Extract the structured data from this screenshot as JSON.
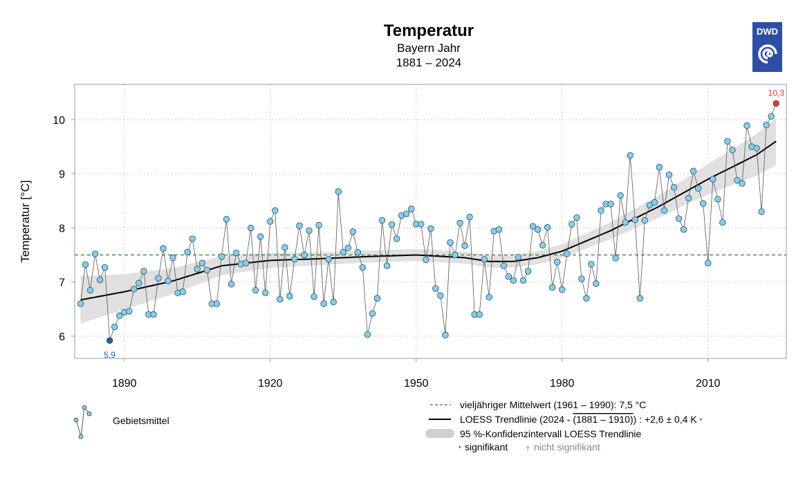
{
  "logo": {
    "text": "DWD",
    "color": "#2d4fa3"
  },
  "chart_data": {
    "type": "line",
    "title": "Temperatur",
    "subtitle": "Bayern Jahr",
    "period": "1881 – 2024",
    "xlabel": "",
    "ylabel": "Temperatur [°C]",
    "xlim": [
      1879.8,
      2026.1
    ],
    "ylim": [
      5.59,
      10.65
    ],
    "xticks": [
      1890,
      1920,
      1950,
      1980,
      2010
    ],
    "yticks": [
      6,
      7,
      8,
      9,
      10
    ],
    "grid": true,
    "x_start": 1881,
    "series": [
      {
        "name": "Gebietsmittel",
        "values": [
          6.6,
          7.32,
          6.85,
          7.52,
          7.04,
          7.27,
          5.92,
          6.17,
          6.38,
          6.44,
          6.46,
          6.87,
          6.98,
          7.2,
          6.4,
          6.4,
          7.07,
          7.62,
          7.02,
          7.45,
          6.8,
          6.82,
          7.55,
          7.8,
          7.24,
          7.35,
          7.22,
          6.6,
          6.6,
          7.47,
          8.16,
          6.96,
          7.54,
          7.33,
          7.35,
          8.0,
          6.85,
          7.84,
          6.8,
          8.12,
          8.32,
          6.68,
          7.64,
          6.74,
          7.42,
          8.04,
          7.5,
          7.95,
          6.73,
          8.05,
          6.6,
          7.42,
          6.63,
          8.67,
          7.55,
          7.63,
          7.93,
          7.55,
          7.27,
          6.03,
          6.42,
          6.7,
          8.14,
          7.3,
          8.06,
          7.8,
          8.23,
          8.26,
          8.35,
          8.07,
          8.07,
          7.41,
          7.99,
          6.88,
          6.75,
          6.02,
          7.73,
          7.5,
          8.09,
          7.67,
          8.2,
          6.4,
          6.4,
          7.42,
          6.72,
          7.94,
          7.97,
          7.3,
          7.1,
          7.03,
          7.46,
          7.03,
          7.2,
          8.03,
          7.97,
          7.68,
          8.01,
          6.9,
          7.37,
          6.86,
          7.52,
          8.07,
          8.19,
          7.06,
          6.7,
          7.33,
          6.97,
          8.32,
          8.44,
          8.44,
          7.44,
          8.6,
          8.1,
          9.34,
          8.15,
          6.7,
          8.14,
          8.42,
          8.47,
          9.12,
          8.32,
          8.98,
          8.75,
          8.17,
          7.97,
          8.55,
          9.05,
          8.73,
          8.45,
          7.35,
          8.9,
          8.53,
          8.1,
          9.6,
          9.44,
          8.88,
          8.82,
          9.89,
          9.5,
          9.47,
          8.3,
          9.9,
          10.06,
          10.3
        ],
        "color": "#87ceeb"
      }
    ],
    "trend": {
      "name": "LOESS Trendlinie",
      "x": [
        1881,
        1890,
        1900,
        1910,
        1920,
        1930,
        1940,
        1950,
        1960,
        1965,
        1970,
        1975,
        1980,
        1990,
        2000,
        2010,
        2020,
        2024
      ],
      "y": [
        6.67,
        6.82,
        7.02,
        7.3,
        7.4,
        7.43,
        7.47,
        7.5,
        7.45,
        7.38,
        7.38,
        7.45,
        7.57,
        7.95,
        8.4,
        8.9,
        9.35,
        9.6
      ]
    },
    "reference_mean": 7.5,
    "annotations": {
      "min": {
        "year": 1887,
        "value": 5.9,
        "label": "5,9",
        "color": "#1f5fa8"
      },
      "max": {
        "year": 2024,
        "value": 10.3,
        "label": "10,3",
        "color": "#e8382e"
      }
    }
  },
  "legend": {
    "series_label": "Gebietsmittel",
    "mean_label": "vieljähriger Mittelwert (1961 – 1990): 7,5 °C",
    "trend_label_prefix": "LOESS Trendlinie (2024 - ",
    "trend_label_period": "(1881 – 1910)",
    "trend_label_suffix": ") : +2,6 ± 0,4 K",
    "trend_sig_mark": "*",
    "ci_label": "95 %-Konfidenzintervall LOESS Trendlinie",
    "sig_mark": "*",
    "sig_label": "signifikant",
    "nonsig_mark": "†",
    "nonsig_label": "nicht signifikant"
  }
}
